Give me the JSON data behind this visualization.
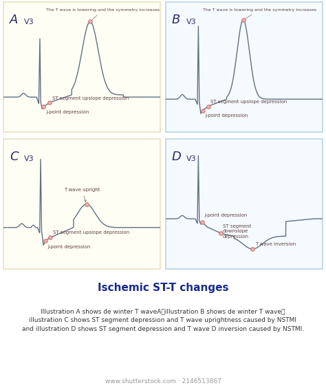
{
  "title": "Ischemic ST-T changes",
  "subtitle_line1": "Illustration A shows de winter T waveA;illustration B shows de winter T wave;",
  "subtitle_line2": "illustration C shows ST segment depression and T wave uprightness caused by NSTMI",
  "subtitle_line3": "and illustration D shows ST segment depression and T wave D inversion caused by NSTMI.",
  "watermark": "www.shutterstock.com · 2146513867",
  "panel_labels": [
    "A",
    "B",
    "C",
    "D"
  ],
  "panel_sublabels": [
    "V3",
    "V3",
    "V3",
    "V3"
  ],
  "bg_color": "#ffffff",
  "panel_bg_A": "#fefef5",
  "panel_bg_B": "#f5faff",
  "panel_bg_C": "#fefef5",
  "panel_bg_D": "#f5faff",
  "panel_border_A": "#e8e0c0",
  "panel_border_B": "#b8d4e8",
  "panel_border_C": "#e8e0c0",
  "panel_border_D": "#b8d4e8",
  "ecg_color": "#607080",
  "dot_face": "#f0b0b0",
  "dot_edge": "#c07070",
  "ann_color": "#604040",
  "title_color": "#1a2a8a",
  "title_fontsize": 11,
  "subtitle_fontsize": 6.5,
  "label_A_fontsize": 13,
  "label_B_fontsize": 13,
  "sub_fontsize": 8,
  "ann_fontsize": 5
}
